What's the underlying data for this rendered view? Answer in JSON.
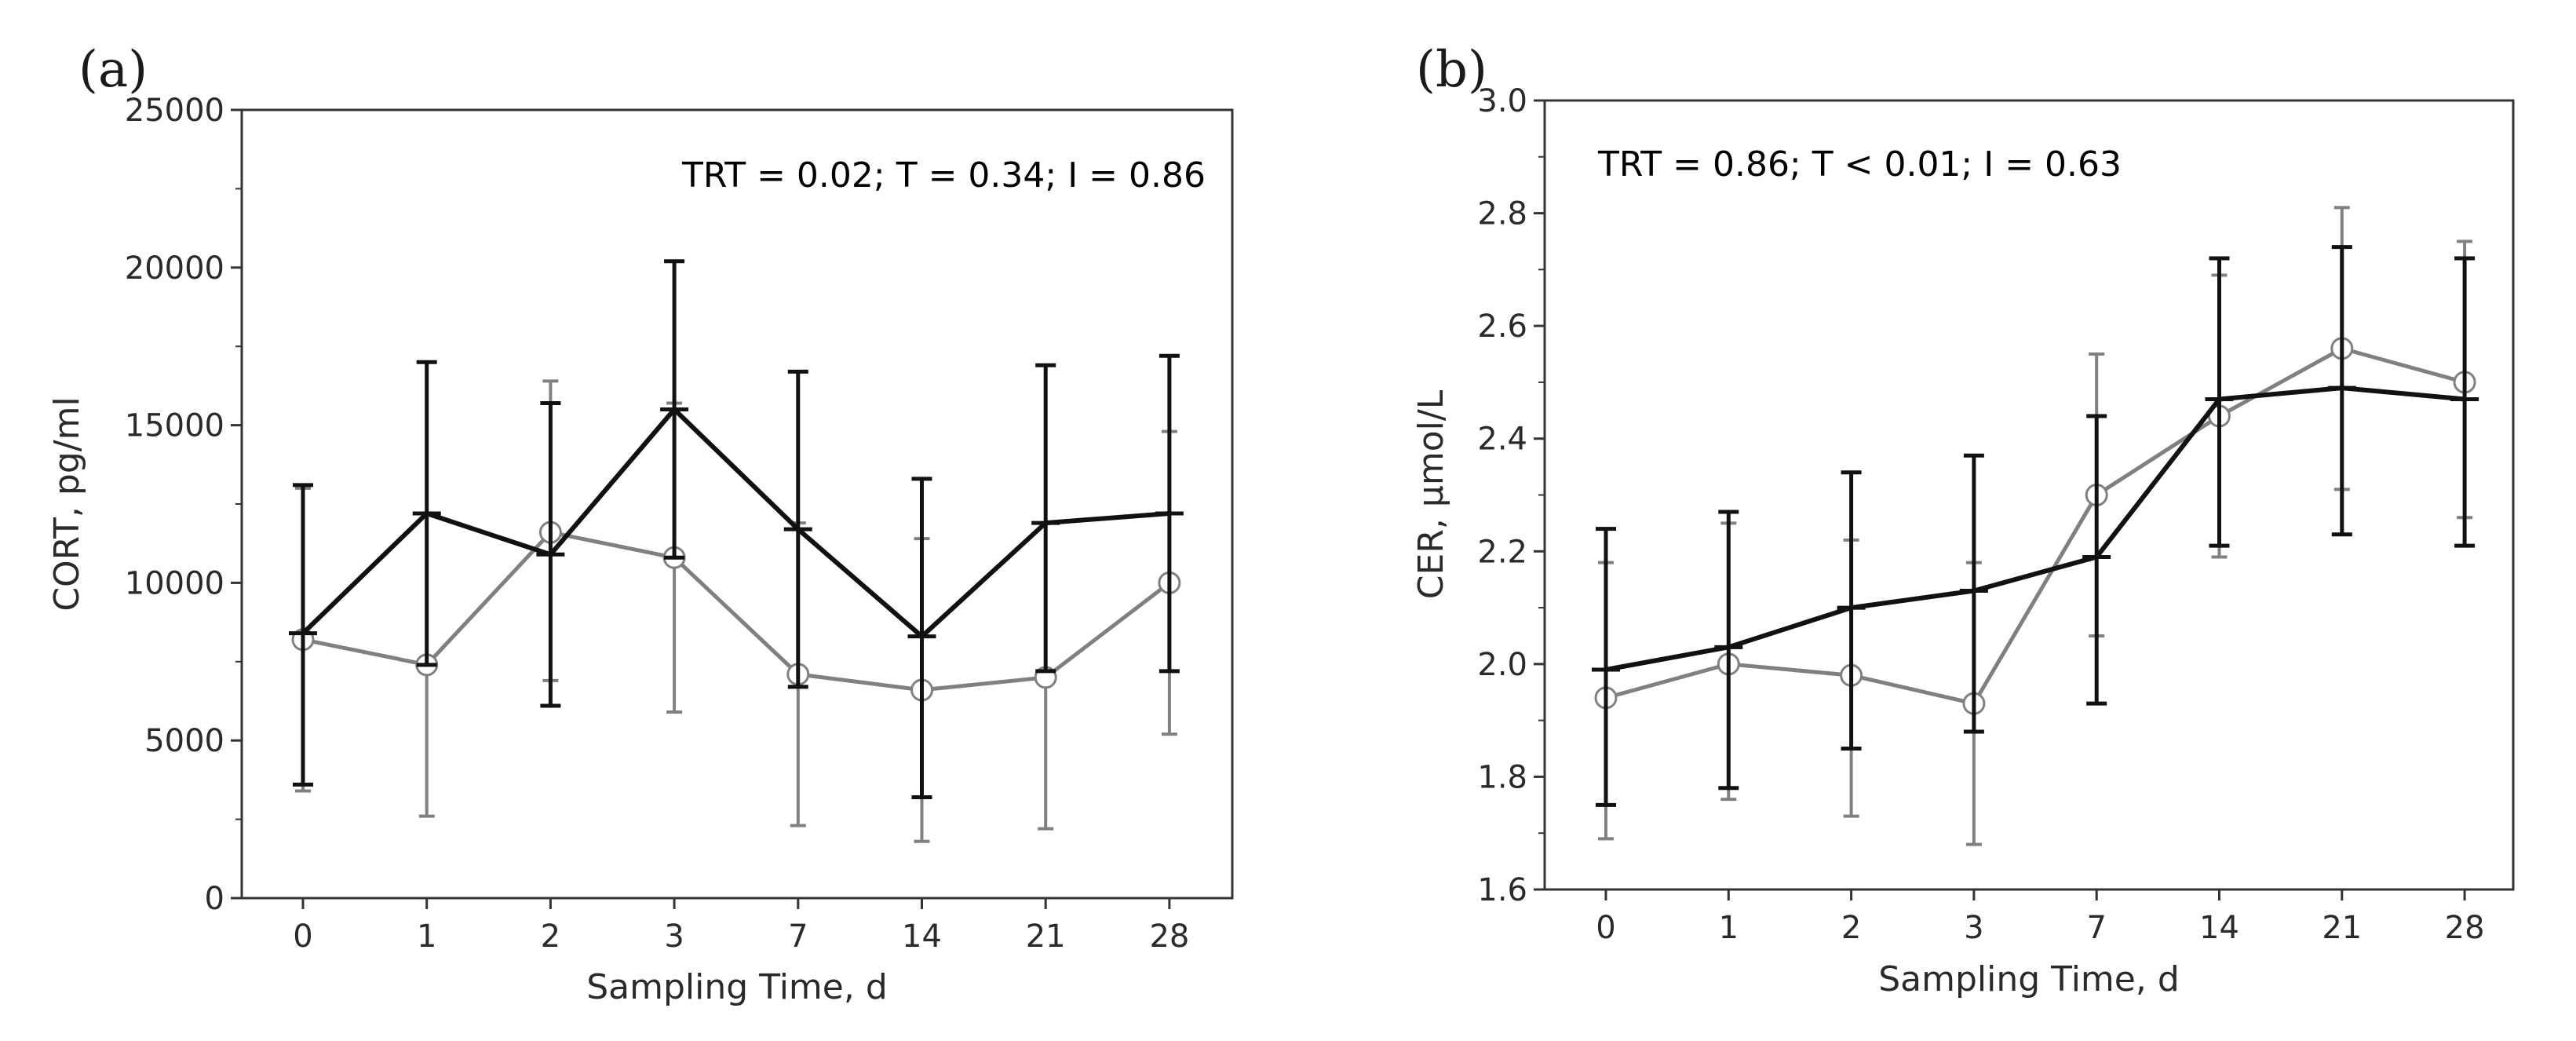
{
  "colors": {
    "black_series": "#111111",
    "gray_series": "#808080",
    "axis": "#333333"
  },
  "chart_data": [
    {
      "type": "line",
      "panel_label": "(a)",
      "annotation": "TRT = 0.02; T = 0.34; I = 0.86",
      "xlabel": "Sampling Time, d",
      "ylabel": "CORT, pg/ml",
      "categories": [
        "0",
        "1",
        "2",
        "3",
        "7",
        "14",
        "21",
        "28"
      ],
      "ylim": [
        0,
        25000
      ],
      "yticks": [
        0,
        5000,
        10000,
        15000,
        20000,
        25000
      ],
      "ytick_labels": [
        "0",
        "5000",
        "10000",
        "15000",
        "20000",
        "25000"
      ],
      "series": [
        {
          "name": "black",
          "color": "#111111",
          "marker": "dash",
          "values": [
            8400,
            12200,
            10900,
            15500,
            11700,
            8300,
            11900,
            12200
          ],
          "err_low": [
            3600,
            7400,
            6100,
            10800,
            6700,
            3200,
            7200,
            7200
          ],
          "err_high": [
            13100,
            17000,
            15700,
            20200,
            16700,
            13300,
            16900,
            17200
          ]
        },
        {
          "name": "gray",
          "color": "#808080",
          "marker": "circle",
          "values": [
            8200,
            7400,
            11600,
            10800,
            7100,
            6600,
            7000,
            10000
          ],
          "err_low": [
            3400,
            2600,
            6900,
            5900,
            2300,
            1800,
            2200,
            5200
          ],
          "err_high": [
            13000,
            12200,
            16400,
            15700,
            11900,
            11400,
            11900,
            14800
          ]
        }
      ]
    },
    {
      "type": "line",
      "panel_label": "(b)",
      "annotation": "TRT = 0.86; T < 0.01; I = 0.63",
      "xlabel": "Sampling Time, d",
      "ylabel": "CER, µmol/L",
      "categories": [
        "0",
        "1",
        "2",
        "3",
        "7",
        "14",
        "21",
        "28"
      ],
      "ylim": [
        1.6,
        3.0
      ],
      "yticks": [
        1.6,
        1.8,
        2.0,
        2.2,
        2.4,
        2.6,
        2.8,
        3.0
      ],
      "ytick_labels": [
        "1.6",
        "1.8",
        "2.0",
        "2.2",
        "2.4",
        "2.6",
        "2.8",
        "3.0"
      ],
      "series": [
        {
          "name": "black",
          "color": "#111111",
          "marker": "dash",
          "values": [
            1.99,
            2.03,
            2.1,
            2.13,
            2.19,
            2.47,
            2.49,
            2.47
          ],
          "err_low": [
            1.75,
            1.78,
            1.85,
            1.88,
            1.93,
            2.21,
            2.23,
            2.21
          ],
          "err_high": [
            2.24,
            2.27,
            2.34,
            2.37,
            2.44,
            2.72,
            2.74,
            2.72
          ]
        },
        {
          "name": "gray",
          "color": "#808080",
          "marker": "circle",
          "values": [
            1.94,
            2.0,
            1.98,
            1.93,
            2.3,
            2.44,
            2.56,
            2.5
          ],
          "err_low": [
            1.69,
            1.76,
            1.73,
            1.68,
            2.05,
            2.19,
            2.31,
            2.26
          ],
          "err_high": [
            2.18,
            2.25,
            2.22,
            2.18,
            2.55,
            2.69,
            2.81,
            2.75
          ]
        }
      ]
    }
  ]
}
